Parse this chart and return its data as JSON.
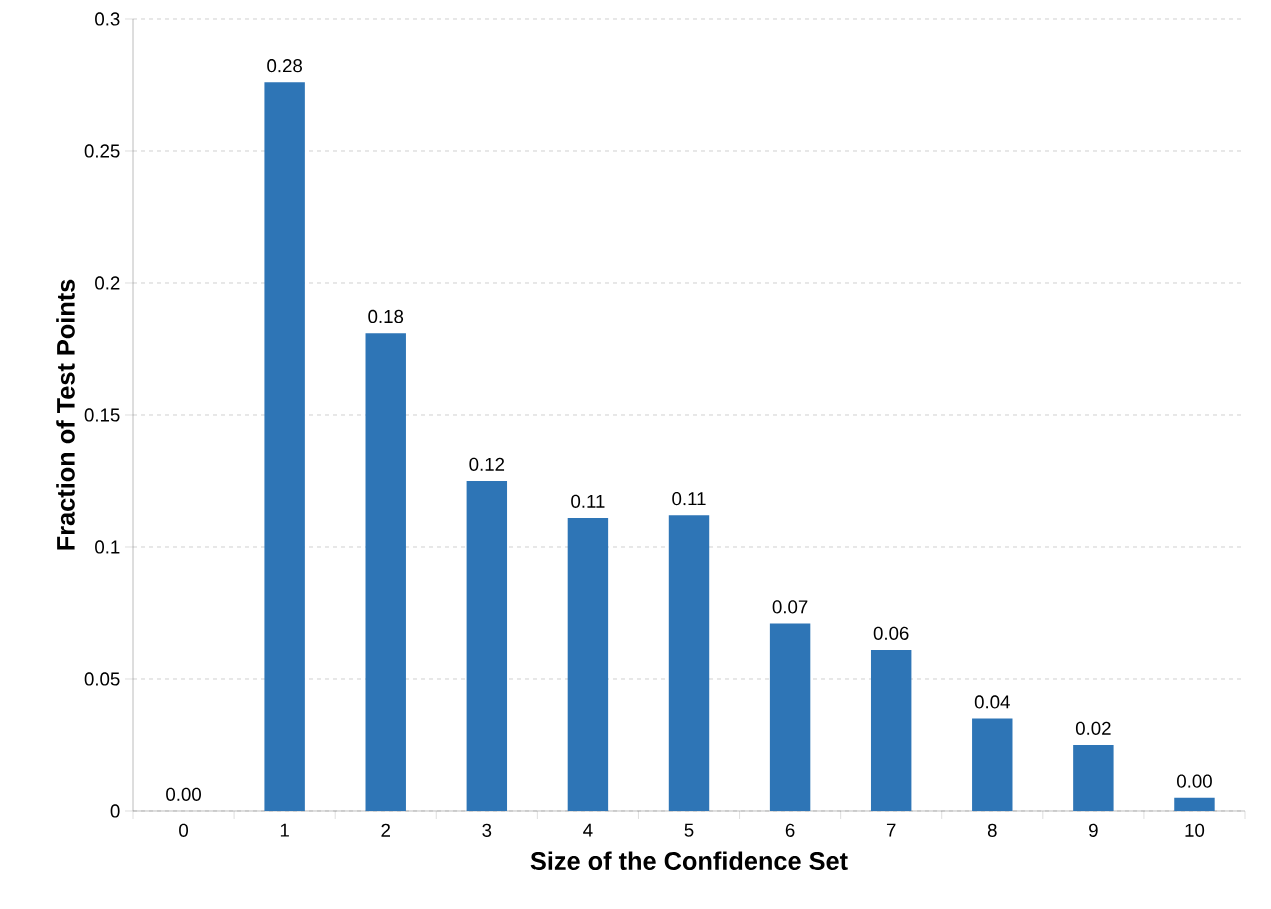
{
  "chart_data": {
    "type": "bar",
    "xlabel": "Size of the Confidence Set",
    "ylabel": "Fraction of Test Points",
    "categories": [
      "0",
      "1",
      "2",
      "3",
      "4",
      "5",
      "6",
      "7",
      "8",
      "9",
      "10"
    ],
    "values": [
      0,
      0.276,
      0.181,
      0.125,
      0.111,
      0.112,
      0.071,
      0.061,
      0.035,
      0.025,
      0.005
    ],
    "value_labels": [
      "0.00",
      "0.28",
      "0.18",
      "0.12",
      "0.11",
      "0.11",
      "0.07",
      "0.06",
      "0.04",
      "0.02",
      "0.00"
    ],
    "color": "#2e75b6",
    "ylim": [
      0,
      0.3
    ],
    "yticks": [
      0,
      0.05,
      0.1,
      0.15,
      0.2,
      0.25,
      0.3
    ],
    "grid": "y"
  }
}
